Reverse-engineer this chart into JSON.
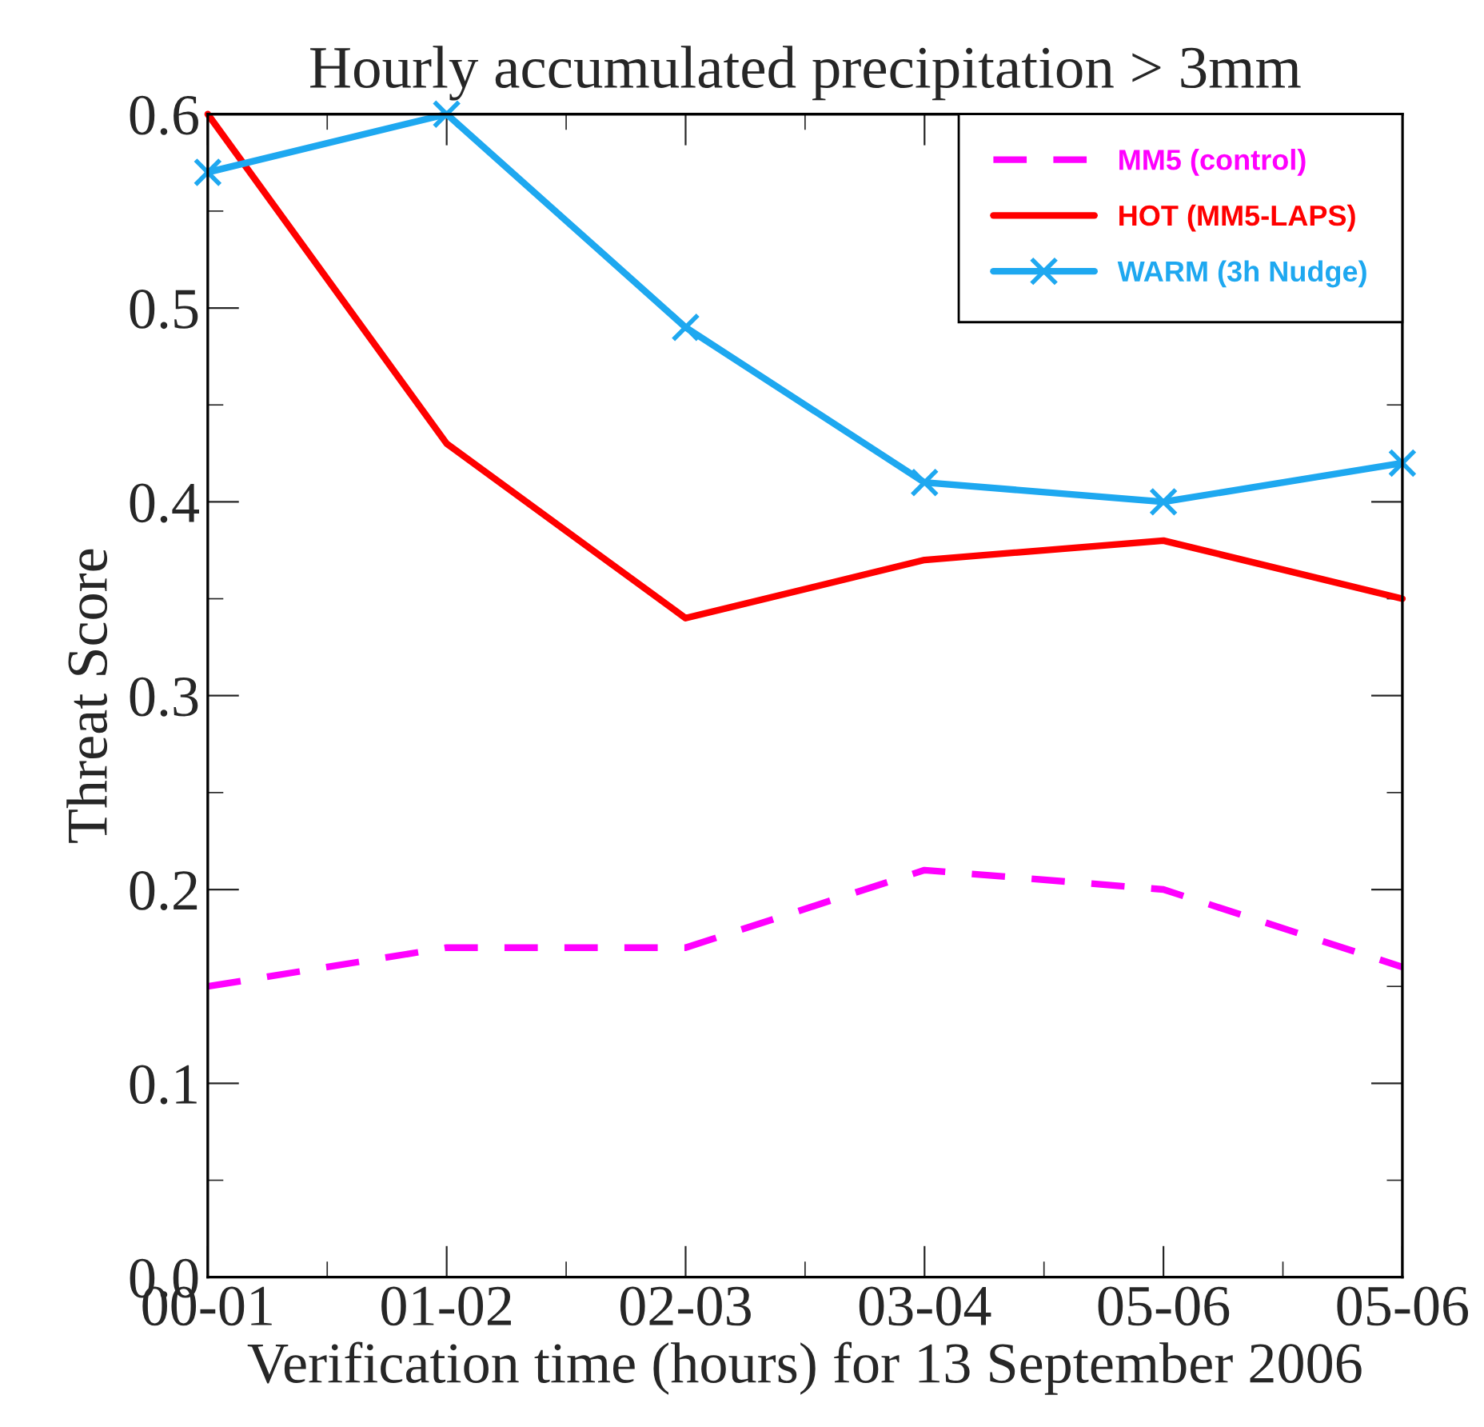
{
  "chart_data": {
    "type": "line",
    "title": "Hourly accumulated precipitation > 3mm",
    "xlabel": "Verification time (hours) for 13 September 2006",
    "ylabel": "Threat Score",
    "categories": [
      "00-01",
      "01-02",
      "02-03",
      "03-04",
      "05-06",
      "05-06"
    ],
    "series": [
      {
        "name": "MM5 (control)",
        "color": "#ff00ff",
        "line_style": "dashed",
        "marker": "none",
        "values": [
          0.15,
          0.17,
          0.17,
          0.21,
          0.2,
          0.16
        ]
      },
      {
        "name": "HOT (MM5-LAPS)",
        "color": "#ff0000",
        "line_style": "solid",
        "marker": "none",
        "values": [
          0.6,
          0.43,
          0.34,
          0.37,
          0.38,
          0.35
        ]
      },
      {
        "name": "WARM (3h Nudge)",
        "color": "#1ea8f0",
        "line_style": "solid",
        "marker": "cross",
        "values": [
          0.57,
          0.6,
          0.49,
          0.41,
          0.4,
          0.42
        ]
      }
    ],
    "ylim": [
      0,
      0.6
    ],
    "yticks": [
      {
        "value": 0,
        "label": "0.0"
      },
      {
        "value": 0.1,
        "label": "0.1"
      },
      {
        "value": 0.2,
        "label": "0.2"
      },
      {
        "value": 0.3,
        "label": "0.3"
      },
      {
        "value": 0.4,
        "label": "0.4"
      },
      {
        "value": 0.5,
        "label": "0.5"
      },
      {
        "value": 0.6,
        "label": "0.6"
      }
    ],
    "grid": false,
    "legend": "top right"
  }
}
